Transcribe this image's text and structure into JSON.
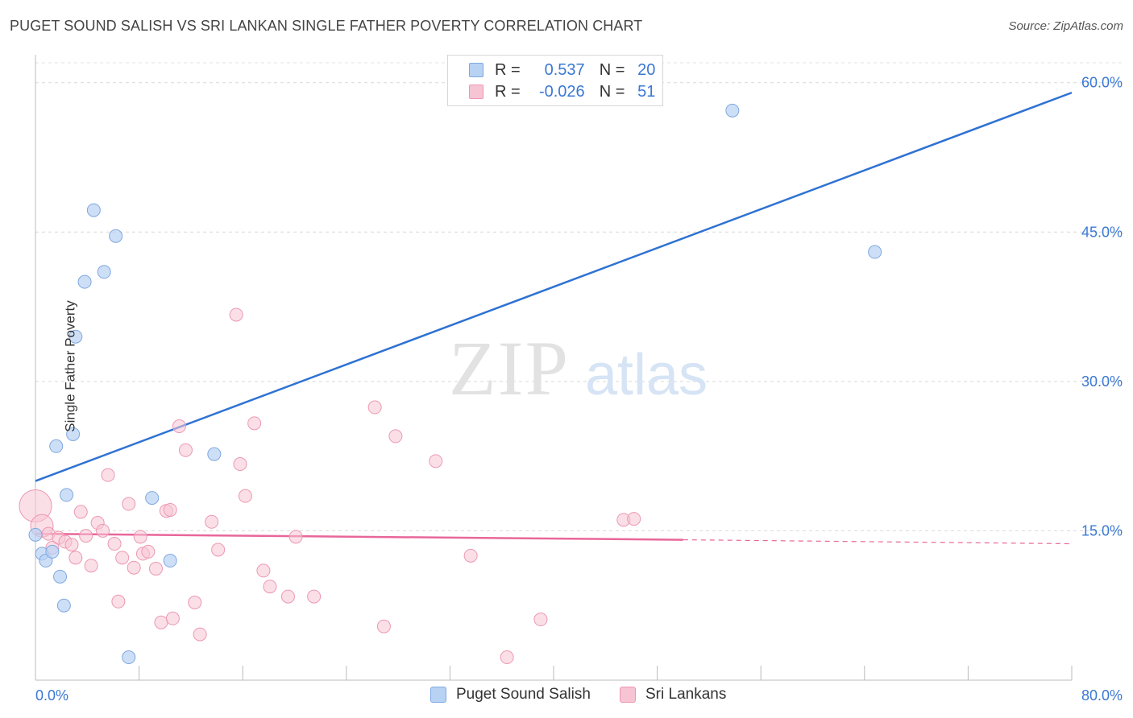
{
  "header": {
    "title": "PUGET SOUND SALISH VS SRI LANKAN SINGLE FATHER POVERTY CORRELATION CHART",
    "source": "Source: ZipAtlas.com"
  },
  "watermark": {
    "zip": "ZIP",
    "atlas": "atlas"
  },
  "colors": {
    "blue_fill": "#b8d2f3",
    "blue_stroke": "#7fa8e0",
    "blue_line": "#2f72d3",
    "pink_fill": "#f7c4d3",
    "pink_stroke": "#ec98b3",
    "pink_line": "#e8679a",
    "axis_label": "#3a78d4"
  },
  "legend": {
    "rows": [
      {
        "r_label": "R =",
        "r_value": "0.537",
        "n_label": "N =",
        "n_value": "20"
      },
      {
        "r_label": "R =",
        "r_value": "-0.026",
        "n_label": "N =",
        "n_value": "51"
      }
    ],
    "bottom": [
      "Puget Sound Salish",
      "Sri Lankans"
    ]
  },
  "chart_data": {
    "type": "scatter",
    "title": "PUGET SOUND SALISH VS SRI LANKAN SINGLE FATHER POVERTY CORRELATION CHART",
    "xlabel": "",
    "ylabel": "Single Father Poverty",
    "xlim": [
      0,
      80
    ],
    "ylim": [
      0,
      62
    ],
    "x_tick_labels": [
      "0.0%",
      "80.0%"
    ],
    "y_ticks": [
      15,
      30,
      45,
      60
    ],
    "y_tick_labels": [
      "15.0%",
      "30.0%",
      "45.0%",
      "60.0%"
    ],
    "grid": true,
    "series": [
      {
        "name": "Puget Sound Salish",
        "points": [
          [
            0.0,
            14.6
          ],
          [
            0.5,
            12.7
          ],
          [
            0.8,
            12.0
          ],
          [
            1.3,
            12.9
          ],
          [
            1.6,
            23.5
          ],
          [
            1.9,
            10.4
          ],
          [
            2.2,
            7.5
          ],
          [
            2.4,
            18.6
          ],
          [
            2.9,
            24.7
          ],
          [
            3.1,
            34.5
          ],
          [
            3.8,
            40.0
          ],
          [
            4.5,
            47.2
          ],
          [
            5.3,
            41.0
          ],
          [
            6.2,
            44.6
          ],
          [
            7.2,
            2.3
          ],
          [
            9.0,
            18.3
          ],
          [
            10.4,
            12.0
          ],
          [
            13.8,
            22.7
          ],
          [
            53.8,
            57.2
          ],
          [
            64.8,
            43.0
          ]
        ],
        "trend": {
          "x": [
            0,
            80
          ],
          "y": [
            20.0,
            59.0
          ]
        }
      },
      {
        "name": "Sri Lankans",
        "points": [
          [
            0.0,
            17.5
          ],
          [
            0.5,
            15.5
          ],
          [
            1.0,
            14.7
          ],
          [
            1.3,
            13.3
          ],
          [
            1.8,
            14.3
          ],
          [
            2.3,
            13.9
          ],
          [
            2.8,
            13.6
          ],
          [
            3.1,
            12.3
          ],
          [
            3.5,
            16.9
          ],
          [
            3.9,
            14.5
          ],
          [
            4.3,
            11.5
          ],
          [
            4.8,
            15.8
          ],
          [
            5.2,
            15.0
          ],
          [
            5.6,
            20.6
          ],
          [
            6.1,
            13.7
          ],
          [
            6.4,
            7.9
          ],
          [
            6.7,
            12.3
          ],
          [
            7.2,
            17.7
          ],
          [
            7.6,
            11.3
          ],
          [
            8.1,
            14.4
          ],
          [
            8.3,
            12.7
          ],
          [
            8.7,
            12.9
          ],
          [
            9.3,
            11.2
          ],
          [
            9.7,
            5.8
          ],
          [
            10.1,
            17.0
          ],
          [
            10.4,
            17.1
          ],
          [
            10.6,
            6.2
          ],
          [
            11.1,
            25.5
          ],
          [
            11.6,
            23.1
          ],
          [
            12.3,
            7.8
          ],
          [
            12.7,
            4.6
          ],
          [
            13.6,
            15.9
          ],
          [
            14.1,
            13.1
          ],
          [
            15.5,
            36.7
          ],
          [
            15.8,
            21.7
          ],
          [
            16.2,
            18.5
          ],
          [
            16.9,
            25.8
          ],
          [
            17.6,
            11.0
          ],
          [
            18.1,
            9.4
          ],
          [
            19.5,
            8.4
          ],
          [
            20.1,
            14.4
          ],
          [
            21.5,
            8.4
          ],
          [
            26.2,
            27.4
          ],
          [
            26.9,
            5.4
          ],
          [
            27.8,
            24.5
          ],
          [
            30.9,
            22.0
          ],
          [
            33.6,
            12.5
          ],
          [
            36.4,
            2.3
          ],
          [
            39.0,
            6.1
          ],
          [
            45.4,
            16.1
          ],
          [
            46.2,
            16.2
          ]
        ],
        "trend": {
          "x": [
            0,
            50
          ],
          "y": [
            14.7,
            14.1
          ]
        },
        "trend_dashed": {
          "x": [
            50,
            80
          ],
          "y": [
            14.1,
            13.7
          ]
        }
      }
    ]
  }
}
